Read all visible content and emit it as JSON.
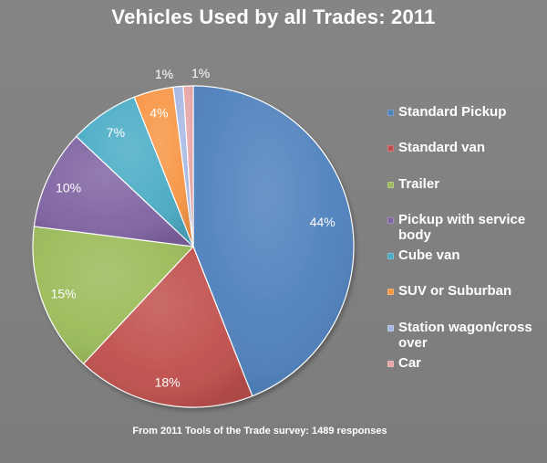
{
  "chart_data": {
    "type": "pie",
    "title": "Vehicles Used by all Trades: 2011",
    "source_note": "From 2011 Tools of the Trade survey: 1489 responses",
    "legend_position": "right",
    "series": [
      {
        "name": "Standard Pickup",
        "value": 44,
        "label": "44%",
        "color": "#4f81bd"
      },
      {
        "name": "Standard van",
        "value": 18,
        "label": "18%",
        "color": "#c0504d"
      },
      {
        "name": "Trailer",
        "value": 15,
        "label": "15%",
        "color": "#9bbb59"
      },
      {
        "name": "Pickup with service body",
        "value": 10,
        "label": "10%",
        "color": "#8064a2"
      },
      {
        "name": "Cube van",
        "value": 7,
        "label": "7%",
        "color": "#4bacc6"
      },
      {
        "name": "SUV or Suburban",
        "value": 4,
        "label": "4%",
        "color": "#f79646"
      },
      {
        "name": "Station wagon/cross over",
        "value": 1,
        "label": "1%",
        "color": "#a5b7e3"
      },
      {
        "name": "Car",
        "value": 1,
        "label": "1%",
        "color": "#e6a5a4"
      }
    ]
  }
}
